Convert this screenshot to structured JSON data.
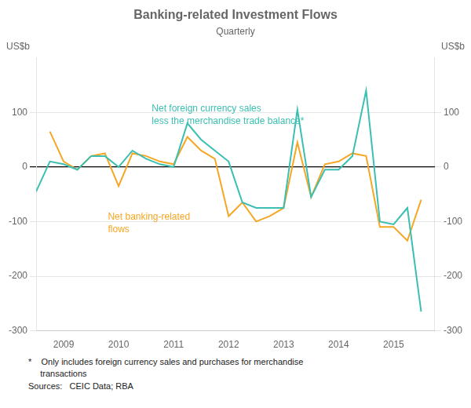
{
  "chart_data": {
    "type": "line",
    "title": "Banking-related Investment Flows",
    "subtitle": "Quarterly",
    "y_label": "US$b",
    "y2_label": "US$b",
    "xlim": [
      2008.5,
      2015.75
    ],
    "xticks": [
      2009,
      2010,
      2011,
      2012,
      2013,
      2014,
      2015
    ],
    "ylim": [
      -300,
      200
    ],
    "yticks": [
      -300,
      -200,
      -100,
      0,
      100
    ],
    "y2lim": [
      -300,
      200
    ],
    "y2ticks": [
      -300,
      -200,
      -100,
      0,
      100
    ],
    "grid": "y",
    "footnote": "*    Only includes foreign currency sales and purchases for merchandise\n     transactions\nSources:   CEIC Data; RBA",
    "series": [
      {
        "name": "Net foreign currency sales\nless the merchandise trade balance*",
        "color": "#3BBFB2",
        "x": [
          2008.5,
          2008.75,
          2009.0,
          2009.25,
          2009.5,
          2009.75,
          2010.0,
          2010.25,
          2010.5,
          2010.75,
          2011.0,
          2011.25,
          2011.5,
          2011.75,
          2012.0,
          2012.25,
          2012.5,
          2012.75,
          2013.0,
          2013.25,
          2013.5,
          2013.75,
          2014.0,
          2014.25,
          2014.5,
          2014.75,
          2015.0,
          2015.25,
          2015.5
        ],
        "values": [
          -45,
          10,
          5,
          -5,
          20,
          20,
          0,
          30,
          15,
          5,
          0,
          80,
          50,
          30,
          10,
          -65,
          -75,
          -75,
          -75,
          105,
          -55,
          -5,
          -5,
          20,
          140,
          -100,
          -105,
          -75,
          -265
        ]
      },
      {
        "name": "Net banking-related\nflows",
        "color": "#F5A623",
        "x": [
          2008.75,
          2009.0,
          2009.25,
          2009.5,
          2009.75,
          2010.0,
          2010.25,
          2010.5,
          2010.75,
          2011.0,
          2011.25,
          2011.5,
          2011.75,
          2012.0,
          2012.25,
          2012.5,
          2012.75,
          2013.0,
          2013.25,
          2013.5,
          2013.75,
          2014.0,
          2014.25,
          2014.5,
          2014.75,
          2015.0,
          2015.25,
          2015.5
        ],
        "values": [
          65,
          10,
          -5,
          20,
          25,
          -35,
          25,
          20,
          10,
          5,
          55,
          30,
          15,
          -90,
          -65,
          -100,
          -90,
          -75,
          45,
          -55,
          5,
          10,
          25,
          20,
          -110,
          -110,
          -135,
          -60
        ]
      }
    ]
  }
}
